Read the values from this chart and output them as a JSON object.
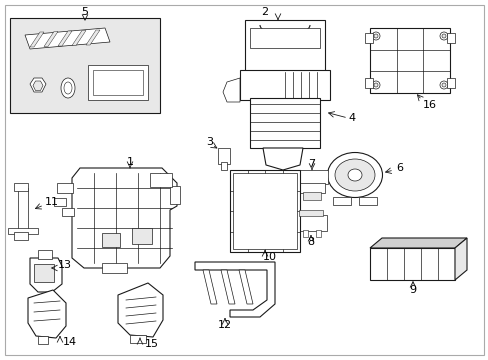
{
  "bg_color": "#ffffff",
  "line_color": "#1a1a1a",
  "fill_light": "#e8e8e8",
  "fill_medium": "#d0d0d0",
  "label_color": "#000000",
  "figw": 4.89,
  "figh": 3.6,
  "dpi": 100
}
